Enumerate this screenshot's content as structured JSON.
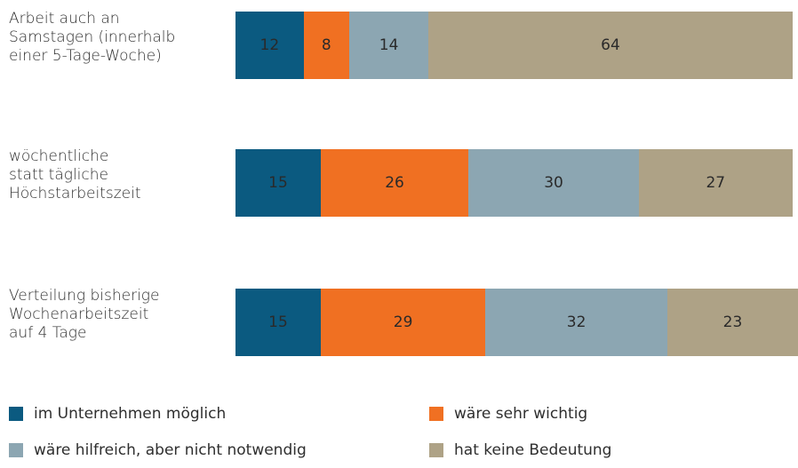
{
  "chart_data": {
    "type": "stacked-bar-horizontal",
    "categories": [
      "Arbeit auch an\nSamstagen (innerhalb\neiner 5-Tage-Woche)",
      "wöchentliche\nstatt tägliche\nHöchstarbeitszeit",
      "Verteilung bisherige\nWochenarbeitszeit\nauf 4 Tage"
    ],
    "series": [
      {
        "name": "im Unternehmen möglich",
        "color": "#0b5a80",
        "values": [
          12,
          15,
          15
        ]
      },
      {
        "name": "wäre sehr wichtig",
        "color": "#f07022",
        "values": [
          8,
          26,
          29
        ]
      },
      {
        "name": "wäre hilfreich, aber nicht notwendig",
        "color": "#8ca6b2",
        "values": [
          14,
          30,
          32
        ]
      },
      {
        "name": "hat keine Bedeutung",
        "color": "#aea286",
        "values": [
          64,
          27,
          23
        ]
      }
    ]
  }
}
